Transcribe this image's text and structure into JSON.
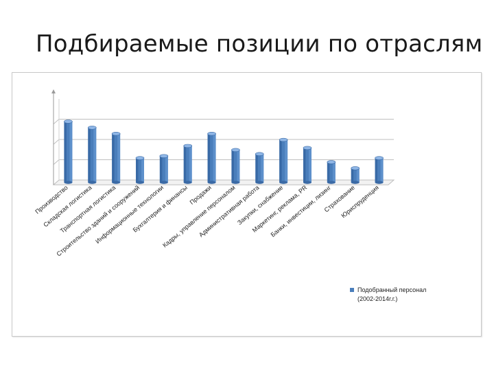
{
  "slide": {
    "title": "Подбираемые позиции по отраслям"
  },
  "chart_data": {
    "type": "bar",
    "title": "",
    "xlabel": "",
    "ylabel": "",
    "ylim": [
      0,
      4
    ],
    "grid": true,
    "y_tick_labels_visible": false,
    "legend_position": "bottom-right",
    "categories": [
      "Производство",
      "Складская логистика",
      "Транспортная логистика",
      "Строительство зданий и сооружений",
      "Информационные технологии",
      "Бухгалтерия и финансы",
      "Продажи",
      "Кадры, управление персоналом",
      "Административная работа",
      "Закупки, снабжение",
      "Маркетинг, реклама, PR",
      "Банки, инвестиции, лизинг",
      "Страхование",
      "Юриспруденция"
    ],
    "series": [
      {
        "name": "Подобранный персонал (2002-2014г.г.)",
        "color": "#4a7ebb",
        "values": [
          3.0,
          2.7,
          2.4,
          1.2,
          1.3,
          1.8,
          2.4,
          1.6,
          1.4,
          2.1,
          1.7,
          1.0,
          0.7,
          1.2
        ]
      }
    ]
  }
}
